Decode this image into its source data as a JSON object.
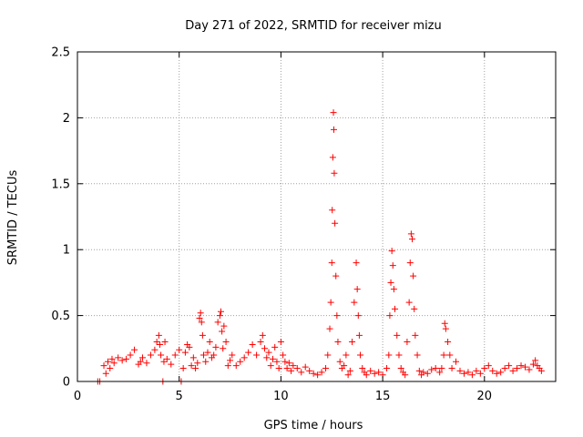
{
  "chart_data": {
    "type": "scatter",
    "title": "Day 271 of 2022, SRMTID for receiver mizu",
    "xlabel": "GPS time / hours",
    "ylabel": "SRMTID / TECUs",
    "xlim": [
      0,
      23.5
    ],
    "ylim": [
      0,
      2.5
    ],
    "grid": true,
    "marker": "plus",
    "series": [
      {
        "name": "SRMTID",
        "color": "#ff0000",
        "x": [
          1.0,
          1.1,
          1.3,
          1.4,
          1.5,
          1.6,
          1.7,
          1.8,
          2.0,
          2.2,
          2.4,
          2.6,
          2.8,
          3.0,
          3.1,
          3.2,
          3.4,
          3.6,
          3.8,
          3.9,
          4.0,
          4.05,
          4.1,
          4.2,
          4.25,
          4.3,
          4.4,
          4.6,
          4.8,
          5.0,
          5.1,
          5.2,
          5.3,
          5.4,
          5.5,
          5.6,
          5.7,
          5.8,
          5.9,
          6.0,
          6.05,
          6.1,
          6.15,
          6.2,
          6.3,
          6.4,
          6.5,
          6.6,
          6.7,
          6.8,
          6.9,
          7.0,
          7.05,
          7.1,
          7.15,
          7.2,
          7.3,
          7.4,
          7.5,
          7.6,
          7.8,
          8.0,
          8.2,
          8.4,
          8.6,
          8.8,
          9.0,
          9.1,
          9.2,
          9.3,
          9.4,
          9.5,
          9.6,
          9.7,
          9.8,
          9.9,
          10.0,
          10.1,
          10.2,
          10.3,
          10.4,
          10.5,
          10.6,
          10.8,
          11.0,
          11.2,
          11.4,
          11.6,
          11.8,
          12.0,
          12.2,
          12.3,
          12.4,
          12.45,
          12.5,
          12.52,
          12.55,
          12.58,
          12.6,
          12.62,
          12.65,
          12.7,
          12.75,
          12.8,
          12.9,
          13.0,
          13.1,
          13.2,
          13.3,
          13.4,
          13.5,
          13.6,
          13.7,
          13.75,
          13.8,
          13.85,
          13.9,
          14.0,
          14.1,
          14.2,
          14.4,
          14.6,
          14.8,
          15.0,
          15.2,
          15.3,
          15.35,
          15.4,
          15.45,
          15.5,
          15.55,
          15.6,
          15.7,
          15.8,
          15.9,
          16.0,
          16.1,
          16.2,
          16.3,
          16.35,
          16.4,
          16.45,
          16.5,
          16.55,
          16.6,
          16.7,
          16.8,
          16.9,
          17.0,
          17.2,
          17.4,
          17.6,
          17.8,
          17.9,
          18.0,
          18.05,
          18.1,
          18.2,
          18.3,
          18.4,
          18.6,
          18.8,
          19.0,
          19.2,
          19.4,
          19.6,
          19.8,
          20.0,
          20.2,
          20.4,
          20.6,
          20.8,
          21.0,
          21.2,
          21.4,
          21.6,
          21.8,
          22.0,
          22.2,
          22.4,
          22.5,
          22.6,
          22.7,
          22.8
        ],
        "y": [
          0.0,
          0.0,
          0.12,
          0.06,
          0.15,
          0.1,
          0.17,
          0.14,
          0.18,
          0.16,
          0.17,
          0.2,
          0.24,
          0.13,
          0.15,
          0.18,
          0.14,
          0.2,
          0.24,
          0.3,
          0.35,
          0.28,
          0.2,
          0.0,
          0.15,
          0.3,
          0.17,
          0.13,
          0.2,
          0.24,
          0.0,
          0.1,
          0.22,
          0.28,
          0.26,
          0.12,
          0.18,
          0.1,
          0.14,
          0.48,
          0.52,
          0.45,
          0.35,
          0.2,
          0.15,
          0.22,
          0.3,
          0.18,
          0.2,
          0.26,
          0.45,
          0.5,
          0.53,
          0.38,
          0.25,
          0.42,
          0.3,
          0.12,
          0.16,
          0.2,
          0.12,
          0.15,
          0.18,
          0.22,
          0.28,
          0.2,
          0.3,
          0.35,
          0.25,
          0.18,
          0.22,
          0.12,
          0.17,
          0.26,
          0.15,
          0.1,
          0.3,
          0.2,
          0.15,
          0.1,
          0.14,
          0.08,
          0.12,
          0.1,
          0.07,
          0.11,
          0.08,
          0.06,
          0.05,
          0.07,
          0.1,
          0.2,
          0.4,
          0.6,
          0.9,
          1.3,
          1.7,
          2.04,
          1.91,
          1.58,
          1.2,
          0.8,
          0.5,
          0.3,
          0.15,
          0.1,
          0.12,
          0.2,
          0.05,
          0.08,
          0.3,
          0.6,
          0.9,
          0.7,
          0.5,
          0.35,
          0.2,
          0.1,
          0.07,
          0.05,
          0.08,
          0.06,
          0.07,
          0.05,
          0.1,
          0.2,
          0.5,
          0.75,
          0.99,
          0.88,
          0.7,
          0.55,
          0.35,
          0.2,
          0.1,
          0.07,
          0.05,
          0.3,
          0.6,
          0.9,
          1.12,
          1.08,
          0.8,
          0.55,
          0.35,
          0.2,
          0.08,
          0.05,
          0.07,
          0.06,
          0.09,
          0.1,
          0.07,
          0.1,
          0.2,
          0.44,
          0.4,
          0.3,
          0.2,
          0.1,
          0.15,
          0.08,
          0.06,
          0.07,
          0.05,
          0.08,
          0.06,
          0.1,
          0.12,
          0.08,
          0.06,
          0.07,
          0.1,
          0.12,
          0.08,
          0.1,
          0.12,
          0.11,
          0.09,
          0.13,
          0.16,
          0.12,
          0.1,
          0.08
        ]
      }
    ],
    "xticks": [
      0,
      5,
      10,
      15,
      20
    ],
    "xtick_labels": [
      "0",
      "5",
      "10",
      "15",
      "20"
    ],
    "yticks": [
      0,
      0.5,
      1,
      1.5,
      2,
      2.5
    ],
    "ytick_labels": [
      "0",
      "0.5",
      "1",
      "1.5",
      "2",
      "2.5"
    ]
  }
}
